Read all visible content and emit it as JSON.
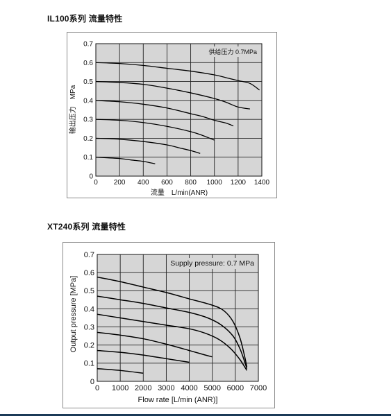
{
  "charts": [
    {
      "heading": "IL100系列 流量特性",
      "chart_data": {
        "type": "line",
        "title": "",
        "xlabel": "流量　L/min(ANR)",
        "ylabel": "输出压力　MPa",
        "annotation": "供给压力 0.7MPa",
        "xlim": [
          0,
          1400
        ],
        "ylim": [
          0,
          0.7
        ],
        "xticks": [
          0,
          200,
          400,
          600,
          800,
          1000,
          1200,
          1400
        ],
        "yticks": [
          0,
          0.1,
          0.2,
          0.3,
          0.4,
          0.5,
          0.6,
          0.7
        ],
        "xtick_labels": [
          "0",
          "200",
          "400",
          "600",
          "800",
          "1000",
          "1200",
          "1400"
        ],
        "ytick_labels": [
          "0",
          "0.1",
          "0.2",
          "0.3",
          "0.4",
          "0.5",
          "0.6",
          "0.7"
        ],
        "grid": true,
        "plot_bg": "#d6d6d6",
        "series": [
          {
            "x": [
              0,
              200,
              400,
              600,
              800,
              1000,
              1100,
              1200,
              1300,
              1380
            ],
            "y": [
              0.6,
              0.595,
              0.585,
              0.57,
              0.555,
              0.535,
              0.52,
              0.505,
              0.49,
              0.455
            ]
          },
          {
            "x": [
              0,
              200,
              400,
              600,
              800,
              1000,
              1100,
              1200,
              1300
            ],
            "y": [
              0.5,
              0.495,
              0.485,
              0.465,
              0.44,
              0.41,
              0.39,
              0.365,
              0.355
            ]
          },
          {
            "x": [
              0,
              200,
              400,
              600,
              800,
              900,
              1000,
              1100,
              1160
            ],
            "y": [
              0.4,
              0.393,
              0.38,
              0.36,
              0.33,
              0.315,
              0.295,
              0.28,
              0.265
            ]
          },
          {
            "x": [
              0,
              200,
              400,
              600,
              800,
              900,
              1000
            ],
            "y": [
              0.3,
              0.295,
              0.283,
              0.263,
              0.235,
              0.215,
              0.19
            ]
          },
          {
            "x": [
              0,
              200,
              400,
              600,
              700,
              800,
              880
            ],
            "y": [
              0.2,
              0.195,
              0.183,
              0.165,
              0.15,
              0.135,
              0.12
            ]
          },
          {
            "x": [
              0,
              200,
              300,
              400,
              500
            ],
            "y": [
              0.1,
              0.093,
              0.085,
              0.078,
              0.065
            ]
          }
        ]
      }
    },
    {
      "heading": "XT240系列 流量特性",
      "chart_data": {
        "type": "line",
        "title": "",
        "xlabel": "Flow rate [L/min (ANR)]",
        "ylabel": "Output pressure [MPa]",
        "annotation": "Supply pressure: 0.7 MPa",
        "xlim": [
          0,
          7000
        ],
        "ylim": [
          0,
          0.7
        ],
        "xticks": [
          0,
          1000,
          2000,
          3000,
          4000,
          5000,
          6000,
          7000
        ],
        "yticks": [
          0,
          0.1,
          0.2,
          0.3,
          0.4,
          0.5,
          0.6,
          0.7
        ],
        "xtick_labels": [
          "0",
          "1000",
          "2000",
          "3000",
          "4000",
          "5000",
          "6000",
          "7000"
        ],
        "ytick_labels": [
          "0",
          "0.1",
          "0.2",
          "0.3",
          "0.4",
          "0.5",
          "0.6",
          "0.7"
        ],
        "grid": true,
        "plot_bg": "#d6d6d6",
        "series": [
          {
            "x": [
              0,
              1000,
              2000,
              3000,
              4000,
              5000,
              5500,
              5900,
              6200,
              6400,
              6500
            ],
            "y": [
              0.575,
              0.55,
              0.52,
              0.49,
              0.455,
              0.42,
              0.39,
              0.33,
              0.24,
              0.14,
              0.08
            ]
          },
          {
            "x": [
              0,
              1000,
              2000,
              3000,
              4000,
              4800,
              5400,
              5900,
              6200,
              6400,
              6500
            ],
            "y": [
              0.47,
              0.45,
              0.43,
              0.405,
              0.38,
              0.35,
              0.31,
              0.25,
              0.18,
              0.11,
              0.07
            ]
          },
          {
            "x": [
              0,
              1000,
              2000,
              3000,
              4000,
              4700,
              5300,
              5800,
              6200,
              6500
            ],
            "y": [
              0.37,
              0.35,
              0.33,
              0.31,
              0.29,
              0.265,
              0.23,
              0.18,
              0.12,
              0.06
            ]
          },
          {
            "x": [
              0,
              1000,
              2000,
              3000,
              4000,
              4700,
              5000
            ],
            "y": [
              0.27,
              0.255,
              0.235,
              0.205,
              0.17,
              0.145,
              0.135
            ]
          },
          {
            "x": [
              0,
              1000,
              2000,
              3000,
              4000
            ],
            "y": [
              0.17,
              0.16,
              0.145,
              0.125,
              0.105
            ]
          },
          {
            "x": [
              0,
              1000,
              2000
            ],
            "y": [
              0.07,
              0.06,
              0.045
            ]
          }
        ]
      }
    }
  ]
}
